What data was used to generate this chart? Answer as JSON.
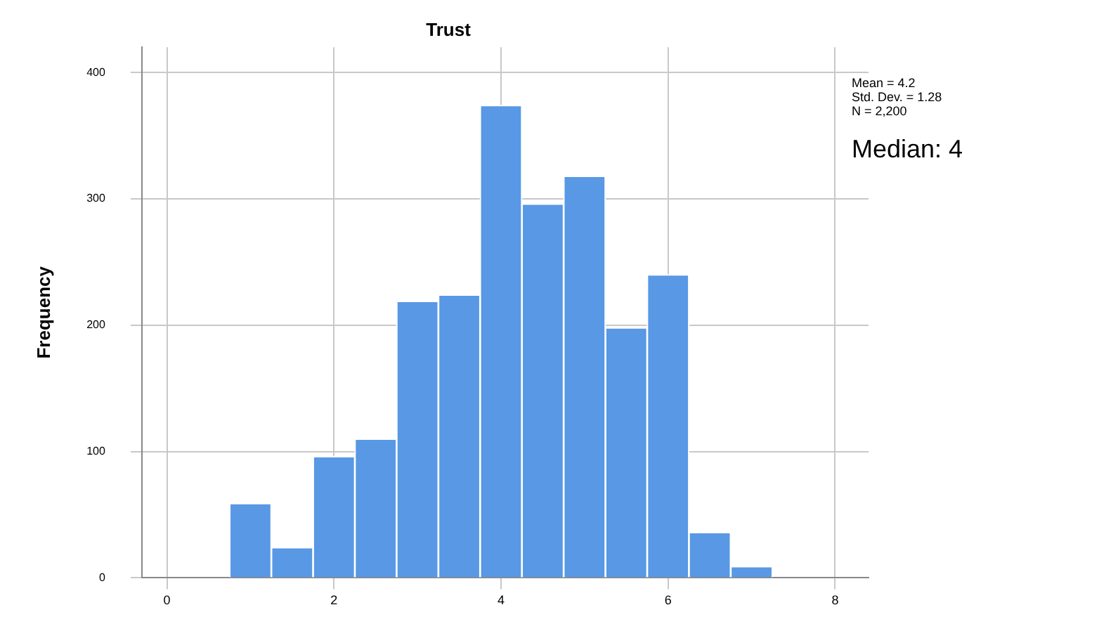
{
  "chart_data": {
    "type": "histogram",
    "title": "Trust",
    "ylabel": "Frequency",
    "bins": [
      0.75,
      1.25,
      1.75,
      2.25,
      2.75,
      3.25,
      3.75,
      4.25,
      4.75,
      5.25,
      5.75,
      6.25,
      6.75,
      7.25
    ],
    "values": [
      59,
      24,
      96,
      110,
      219,
      224,
      374,
      296,
      318,
      198,
      240,
      36,
      9
    ],
    "color": "#5898e4",
    "xlim": [
      -0.3,
      8.4
    ],
    "xticks": [
      0,
      2,
      4,
      6,
      8
    ],
    "ylim": [
      0,
      420
    ],
    "yticks": [
      0,
      100,
      200,
      300,
      400
    ],
    "grid": true,
    "legend": false,
    "annotations": [
      "Mean = 4.2",
      "Std. Dev. = 1.28",
      "N = 2,200",
      "Median: 4"
    ]
  }
}
